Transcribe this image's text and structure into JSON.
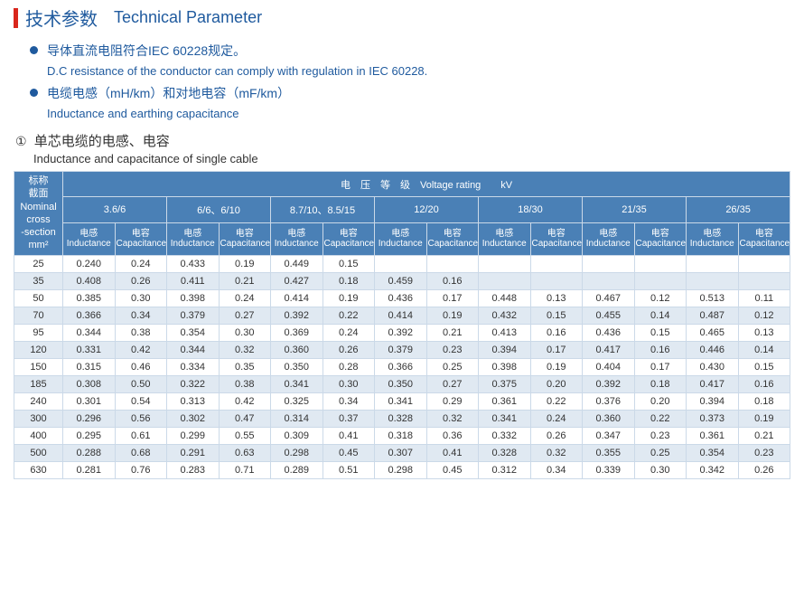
{
  "header": {
    "title_cn": "技术参数",
    "title_en": "Technical Parameter"
  },
  "bullets": [
    {
      "cn": "导体直流电阻符合IEC 60228规定。",
      "en": "D.C resistance of the conductor can comply with regulation in IEC 60228."
    },
    {
      "cn": "电缆电感（mH/km）和对地电容（mF/km）",
      "en": "Inductance and earthing capacitance"
    }
  ],
  "subtitle": {
    "num": "①",
    "cn": "单芯电缆的电感、电容",
    "en": "Inductance and capacitance of single cable"
  },
  "table": {
    "corner": "标称\n截面\nNominal\ncross\n-section\nmm²",
    "voltage_header": "电　压　等　级　Voltage rating　　kV",
    "voltage_groups": [
      "3.6/6",
      "6/6、6/10",
      "8.7/10、8.5/15",
      "12/20",
      "18/30",
      "21/35",
      "26/35"
    ],
    "sub_pair": {
      "l_cn": "电感",
      "l_en": "Inductance",
      "c_cn": "电容",
      "c_en": "Capacitance"
    },
    "rows": [
      {
        "size": "25",
        "v": [
          "0.240",
          "0.24",
          "0.433",
          "0.19",
          "0.449",
          "0.15",
          "",
          "",
          "",
          "",
          "",
          "",
          "",
          ""
        ]
      },
      {
        "size": "35",
        "v": [
          "0.408",
          "0.26",
          "0.411",
          "0.21",
          "0.427",
          "0.18",
          "0.459",
          "0.16",
          "",
          "",
          "",
          "",
          "",
          ""
        ]
      },
      {
        "size": "50",
        "v": [
          "0.385",
          "0.30",
          "0.398",
          "0.24",
          "0.414",
          "0.19",
          "0.436",
          "0.17",
          "0.448",
          "0.13",
          "0.467",
          "0.12",
          "0.513",
          "0.11"
        ]
      },
      {
        "size": "70",
        "v": [
          "0.366",
          "0.34",
          "0.379",
          "0.27",
          "0.392",
          "0.22",
          "0.414",
          "0.19",
          "0.432",
          "0.15",
          "0.455",
          "0.14",
          "0.487",
          "0.12"
        ]
      },
      {
        "size": "95",
        "v": [
          "0.344",
          "0.38",
          "0.354",
          "0.30",
          "0.369",
          "0.24",
          "0.392",
          "0.21",
          "0.413",
          "0.16",
          "0.436",
          "0.15",
          "0.465",
          "0.13"
        ]
      },
      {
        "size": "120",
        "v": [
          "0.331",
          "0.42",
          "0.344",
          "0.32",
          "0.360",
          "0.26",
          "0.379",
          "0.23",
          "0.394",
          "0.17",
          "0.417",
          "0.16",
          "0.446",
          "0.14"
        ]
      },
      {
        "size": "150",
        "v": [
          "0.315",
          "0.46",
          "0.334",
          "0.35",
          "0.350",
          "0.28",
          "0.366",
          "0.25",
          "0.398",
          "0.19",
          "0.404",
          "0.17",
          "0.430",
          "0.15"
        ]
      },
      {
        "size": "185",
        "v": [
          "0.308",
          "0.50",
          "0.322",
          "0.38",
          "0.341",
          "0.30",
          "0.350",
          "0.27",
          "0.375",
          "0.20",
          "0.392",
          "0.18",
          "0.417",
          "0.16"
        ]
      },
      {
        "size": "240",
        "v": [
          "0.301",
          "0.54",
          "0.313",
          "0.42",
          "0.325",
          "0.34",
          "0.341",
          "0.29",
          "0.361",
          "0.22",
          "0.376",
          "0.20",
          "0.394",
          "0.18"
        ]
      },
      {
        "size": "300",
        "v": [
          "0.296",
          "0.56",
          "0.302",
          "0.47",
          "0.314",
          "0.37",
          "0.328",
          "0.32",
          "0.341",
          "0.24",
          "0.360",
          "0.22",
          "0.373",
          "0.19"
        ]
      },
      {
        "size": "400",
        "v": [
          "0.295",
          "0.61",
          "0.299",
          "0.55",
          "0.309",
          "0.41",
          "0.318",
          "0.36",
          "0.332",
          "0.26",
          "0.347",
          "0.23",
          "0.361",
          "0.21"
        ]
      },
      {
        "size": "500",
        "v": [
          "0.288",
          "0.68",
          "0.291",
          "0.63",
          "0.298",
          "0.45",
          "0.307",
          "0.41",
          "0.328",
          "0.32",
          "0.355",
          "0.25",
          "0.354",
          "0.23"
        ]
      },
      {
        "size": "630",
        "v": [
          "0.281",
          "0.76",
          "0.283",
          "0.71",
          "0.289",
          "0.51",
          "0.298",
          "0.45",
          "0.312",
          "0.34",
          "0.339",
          "0.30",
          "0.342",
          "0.26"
        ]
      }
    ]
  },
  "colors": {
    "accent": "#1f5a9e",
    "header_bg": "#4a80b6",
    "border": "#cbd9e8",
    "alt_row": "#e0e9f2",
    "red": "#d9261c"
  }
}
